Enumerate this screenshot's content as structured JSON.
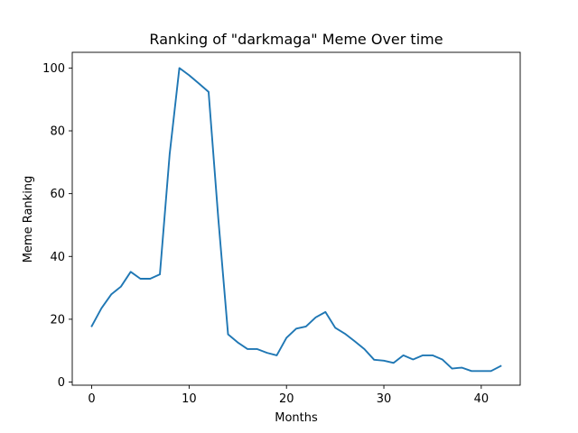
{
  "chart_data": {
    "type": "line",
    "title": "Ranking of \"darkmaga\" Meme Over time",
    "xlabel": "Months",
    "ylabel": "Meme Ranking",
    "xlim": [
      -2,
      44
    ],
    "ylim": [
      -1,
      105
    ],
    "xticks": [
      0,
      10,
      20,
      30,
      40
    ],
    "yticks": [
      0,
      20,
      40,
      60,
      80,
      100
    ],
    "grid": false,
    "series": [
      {
        "color": "#1f77b4",
        "x": [
          0,
          1,
          2,
          3,
          4,
          5,
          6,
          7,
          8,
          9,
          10,
          11,
          12,
          13,
          14,
          15,
          16,
          17,
          18,
          19,
          20,
          21,
          22,
          23,
          24,
          25,
          26,
          27,
          28,
          29,
          30,
          31,
          32,
          33,
          34,
          35,
          36,
          37,
          38,
          39,
          40,
          41,
          42
        ],
        "y": [
          17.8,
          23.5,
          27.9,
          30.4,
          35.1,
          32.9,
          32.9,
          34.3,
          72.5,
          100,
          97.7,
          95.1,
          92.4,
          52,
          15.2,
          12.6,
          10.5,
          10.5,
          9.3,
          8.5,
          14.1,
          17,
          17.7,
          20.6,
          22.3,
          17.3,
          15.4,
          13,
          10.5,
          7.1,
          6.8,
          6.1,
          8.5,
          7.2,
          8.5,
          8.5,
          7.2,
          4.3,
          4.6,
          3.5,
          3.5,
          3.5,
          5.1
        ]
      }
    ]
  }
}
